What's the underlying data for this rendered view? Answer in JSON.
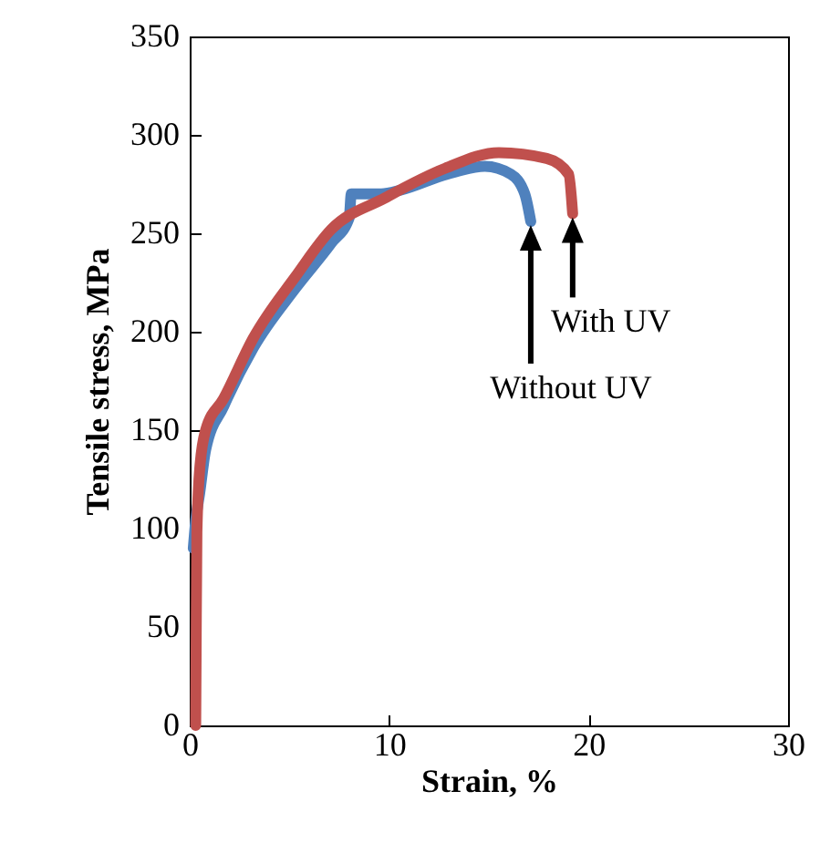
{
  "chart_data": {
    "type": "line",
    "xlabel": "Strain, %",
    "ylabel": "Tensile stress, MPa",
    "xlim": [
      0,
      30
    ],
    "xticks": [
      0,
      10,
      20,
      30
    ],
    "ylim": [
      0,
      350
    ],
    "yticks": [
      0,
      50,
      100,
      150,
      200,
      250,
      300,
      350
    ],
    "grid": false,
    "marker": "none",
    "line_style": "solid",
    "series": [
      {
        "color": "#4f81bd",
        "x": [
          0.18,
          0.3,
          0.5,
          0.8,
          1.7,
          3.2,
          5.3,
          7.1,
          8.0,
          8.1,
          9.6,
          10.6,
          12.9,
          14.8,
          16.1,
          16.8,
          17.1
        ],
        "values": [
          90,
          104,
          118,
          140,
          162,
          192,
          222,
          245,
          258,
          270,
          270,
          272,
          280,
          284,
          280,
          270,
          256
        ]
      },
      {
        "color": "#c0504d",
        "x": [
          0.3,
          0.32,
          0.36,
          0.5,
          0.8,
          1.7,
          3.2,
          5.3,
          7.1,
          9.8,
          12.8,
          15.5,
          17.9,
          19.0,
          19.2
        ],
        "values": [
          0,
          36,
          98,
          130,
          150,
          166,
          197,
          228,
          252,
          268,
          283,
          291,
          288,
          280,
          260
        ]
      }
    ],
    "annotations": [
      "Without UV",
      "With UV"
    ]
  }
}
